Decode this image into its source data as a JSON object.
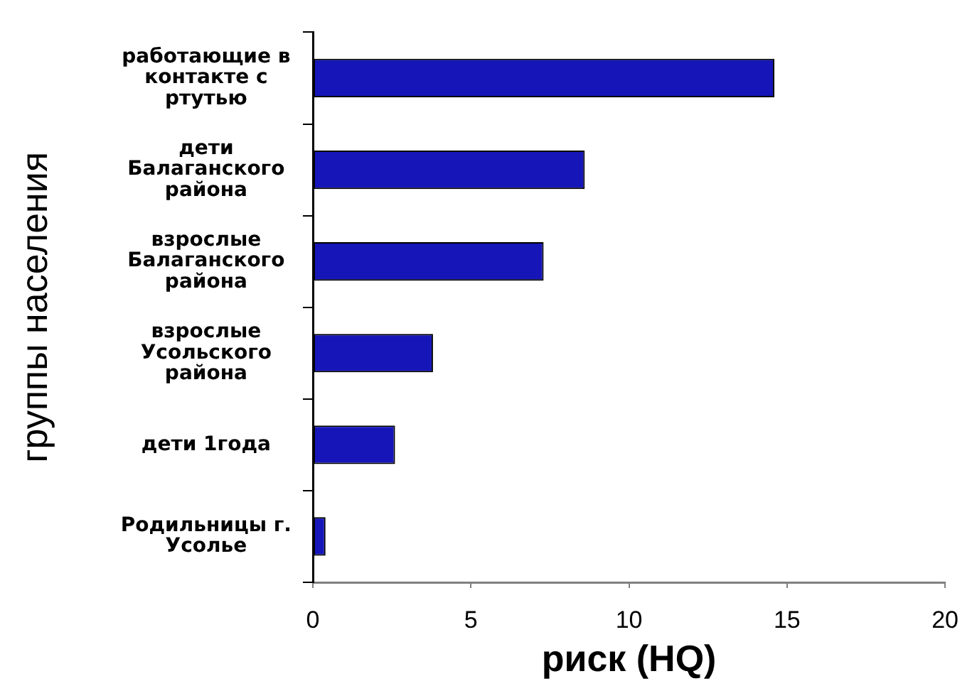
{
  "chart_data": {
    "type": "bar",
    "orientation": "horizontal",
    "xlabel": "риск (HQ)",
    "ylabel": "группы населения",
    "categories": [
      "работающие в контакте с ртутью",
      "дети Балаганского района",
      "взрослые Балаганского района",
      "взрослые Усольского района",
      "дети 1года",
      "Родильницы г. Усолье"
    ],
    "values": [
      14.6,
      8.6,
      7.3,
      3.8,
      2.6,
      0.4
    ],
    "color": "#1616b8",
    "xlim": [
      0,
      20
    ],
    "xticks": [
      0,
      5,
      10,
      15,
      20
    ],
    "grid": false,
    "legend": false
  }
}
